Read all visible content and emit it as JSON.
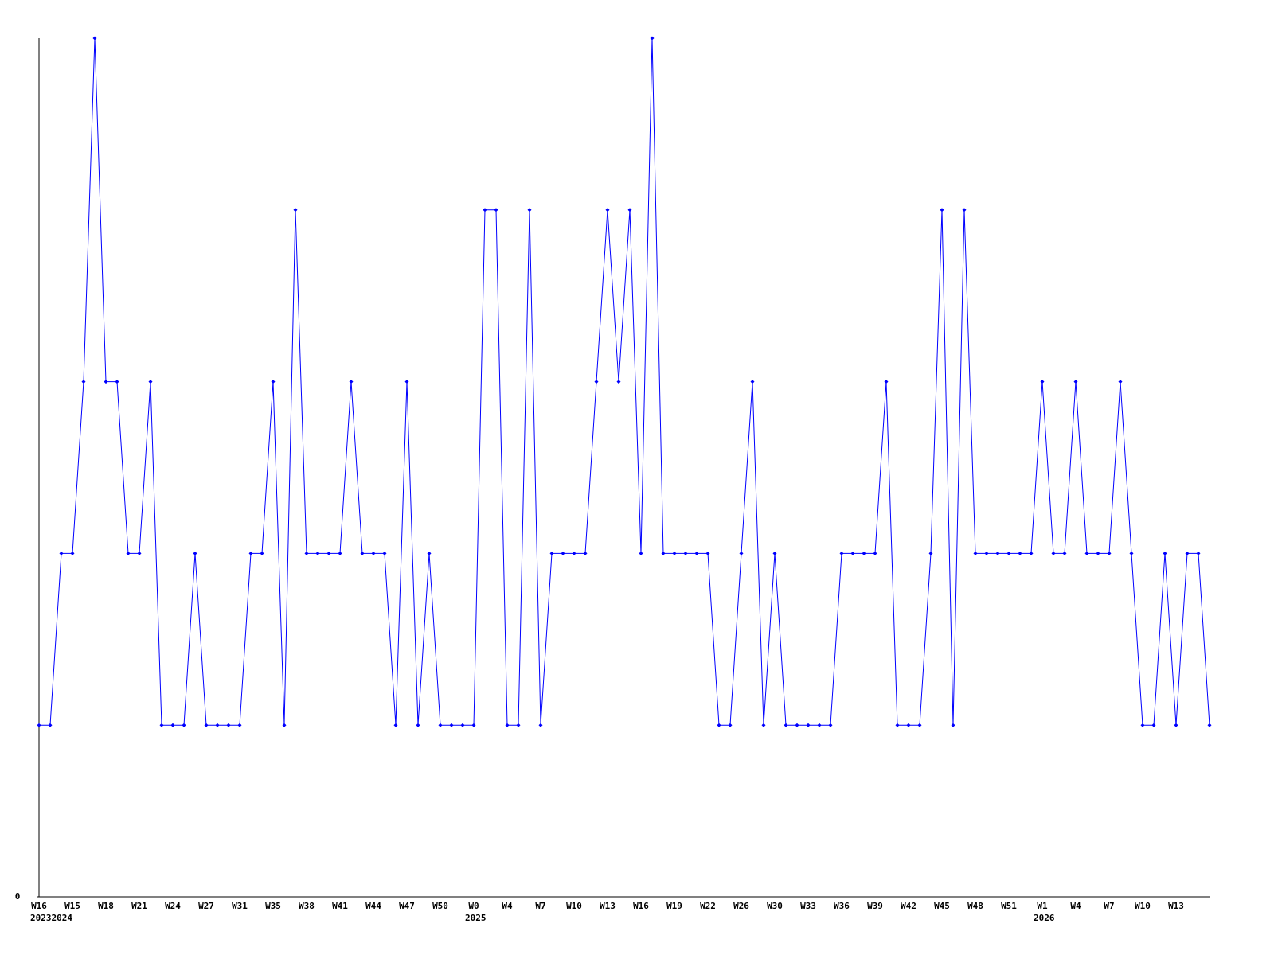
{
  "chart_data": {
    "type": "line",
    "categories": [
      "W16",
      null,
      null,
      "W15",
      null,
      null,
      "W18",
      null,
      null,
      "W21",
      null,
      null,
      "W24",
      null,
      null,
      "W27",
      null,
      null,
      "W31",
      null,
      null,
      "W35",
      null,
      null,
      "W38",
      null,
      null,
      "W41",
      null,
      null,
      "W44",
      null,
      null,
      "W47",
      null,
      null,
      "W50",
      null,
      null,
      "W0",
      null,
      null,
      "W4",
      null,
      null,
      "W7",
      null,
      null,
      "W10",
      null,
      null,
      "W13",
      null,
      null,
      "W16",
      null,
      null,
      "W19",
      null,
      null,
      "W22",
      null,
      null,
      "W26",
      null,
      null,
      "W30",
      null,
      null,
      "W33",
      null,
      null,
      "W36",
      null,
      null,
      "W39",
      null,
      null,
      "W42",
      null,
      null,
      "W45",
      null,
      null,
      "W48",
      null,
      null,
      "W51",
      null,
      null,
      "W1",
      null,
      null,
      "W4",
      null,
      null,
      "W7",
      null,
      null,
      "W10",
      null,
      null,
      "W13",
      null,
      null,
      null
    ],
    "year_labels": [
      "20232024",
      null,
      null,
      null,
      null,
      null,
      null,
      null,
      null,
      null,
      null,
      null,
      null,
      null,
      null,
      null,
      null,
      null,
      null,
      null,
      null,
      null,
      null,
      null,
      null,
      null,
      null,
      null,
      null,
      null,
      null,
      null,
      null,
      null,
      null,
      null,
      null,
      null,
      null,
      "2025",
      null,
      null,
      null,
      null,
      null,
      null,
      null,
      null,
      null,
      null,
      null,
      null,
      null,
      null,
      null,
      null,
      null,
      null,
      null,
      null,
      null,
      null,
      null,
      null,
      null,
      null,
      null,
      null,
      null,
      null,
      null,
      null,
      null,
      null,
      null,
      null,
      null,
      null,
      null,
      null,
      null,
      null,
      null,
      null,
      null,
      null,
      null,
      null,
      null,
      null,
      "2026",
      null,
      null,
      null,
      null,
      null,
      null,
      null,
      null,
      null,
      null,
      null,
      null,
      null,
      null,
      null
    ],
    "series": [
      {
        "color": "#0000ff",
        "values": [
          1,
          1,
          2,
          2,
          3,
          5,
          3,
          3,
          2,
          2,
          3,
          1,
          1,
          1,
          2,
          1,
          1,
          1,
          1,
          2,
          2,
          3,
          1,
          4,
          2,
          2,
          2,
          2,
          3,
          2,
          2,
          2,
          1,
          3,
          1,
          2,
          1,
          1,
          1,
          1,
          4,
          4,
          1,
          1,
          4,
          1,
          2,
          2,
          2,
          2,
          3,
          4,
          3,
          4,
          2,
          5,
          2,
          2,
          2,
          2,
          2,
          1,
          1,
          2,
          3,
          1,
          2,
          1,
          1,
          1,
          1,
          1,
          2,
          2,
          2,
          2,
          3,
          1,
          1,
          1,
          2,
          4,
          1,
          4,
          2,
          2,
          2,
          2,
          2,
          2,
          3,
          2,
          2,
          3,
          2,
          2,
          2,
          3,
          2,
          1,
          1,
          2,
          1,
          2,
          2,
          1
        ]
      }
    ],
    "ylim": [
      0,
      5
    ],
    "yticks": [
      0
    ],
    "grid": false
  }
}
